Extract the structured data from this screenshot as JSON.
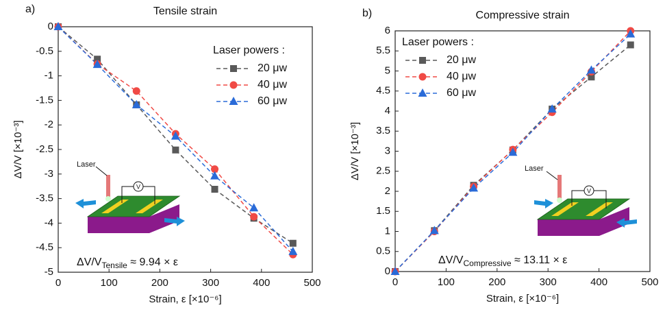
{
  "chart_data": [
    {
      "type": "line",
      "panel_label": "a)",
      "title": "Tensile strain",
      "x_label": "Strain, ε [×10⁻⁶]",
      "y_label": "ΔV/V [×10⁻³]",
      "xlim": [
        0,
        500
      ],
      "xticks": [
        0,
        100,
        200,
        300,
        400,
        500
      ],
      "ylim": [
        -5,
        0
      ],
      "yticks": [
        0,
        -0.5,
        -1,
        -1.5,
        -2,
        -2.5,
        -3,
        -3.5,
        -4,
        -4.5,
        -5
      ],
      "legend_title": "Laser powers :",
      "legend": "upper right",
      "x": [
        0,
        77,
        154,
        231,
        308,
        385,
        462
      ],
      "series": [
        {
          "name": "20 μw",
          "color": "#595959",
          "marker": "square",
          "values": [
            0,
            -0.66,
            -1.59,
            -2.51,
            -3.31,
            -3.9,
            -4.41
          ]
        },
        {
          "name": "40 μw",
          "color": "#f04a45",
          "marker": "circle",
          "values": [
            0,
            -0.76,
            -1.31,
            -2.18,
            -2.9,
            -3.87,
            -4.64
          ]
        },
        {
          "name": "60 μw",
          "color": "#2a6bd8",
          "marker": "triangle",
          "values": [
            0,
            -0.77,
            -1.59,
            -2.23,
            -3.04,
            -3.69,
            -4.58
          ]
        }
      ],
      "annotation": {
        "main": "ΔV/V",
        "sub": "Tensile",
        "rest": " ≈ 9.94 × ε"
      },
      "inset_label": "Laser",
      "voltmeter_label": "V"
    },
    {
      "type": "line",
      "panel_label": "b)",
      "title": "Compressive strain",
      "x_label": "Strain, ε [×10⁻⁶]",
      "y_label": "ΔV/V [×10⁻³]",
      "xlim": [
        0,
        500
      ],
      "xticks": [
        0,
        100,
        200,
        300,
        400,
        500
      ],
      "ylim": [
        0,
        6
      ],
      "yticks": [
        0,
        0.5,
        1,
        1.5,
        2,
        2.5,
        3,
        3.5,
        4,
        4.5,
        5,
        5.5,
        6
      ],
      "legend_title": "Laser powers :",
      "legend": "upper left",
      "x": [
        0,
        77,
        154,
        231,
        308,
        385,
        462
      ],
      "series": [
        {
          "name": "20 μw",
          "color": "#595959",
          "marker": "square",
          "values": [
            0,
            1.02,
            2.15,
            3.03,
            4.05,
            4.85,
            5.65
          ]
        },
        {
          "name": "40 μw",
          "color": "#f04a45",
          "marker": "circle",
          "values": [
            0,
            1.0,
            2.12,
            3.04,
            3.97,
            4.98,
            6.0
          ]
        },
        {
          "name": "60 μw",
          "color": "#2a6bd8",
          "marker": "triangle",
          "values": [
            0,
            1.02,
            2.08,
            2.97,
            4.05,
            5.02,
            5.92
          ]
        }
      ],
      "annotation": {
        "main": "ΔV/V",
        "sub": "Compressive",
        "rest": " ≈ 13.11 × ε"
      },
      "inset_label": "Laser",
      "voltmeter_label": "V"
    }
  ]
}
